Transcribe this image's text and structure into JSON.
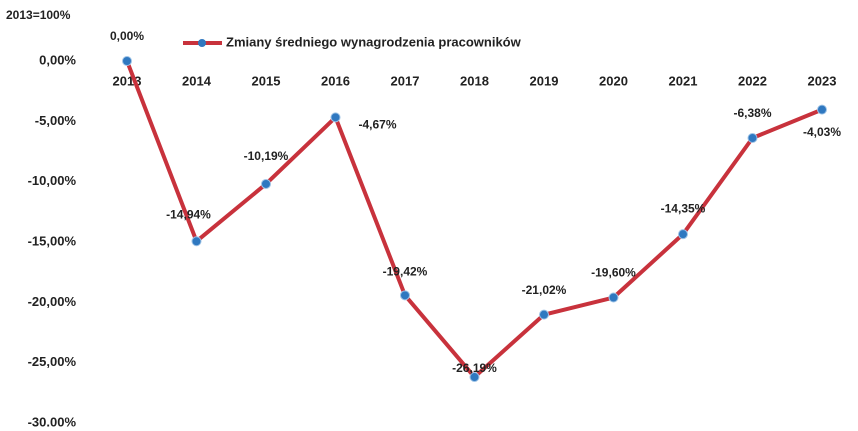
{
  "chart_data": {
    "type": "line",
    "y_axis_label": "2013=100%",
    "categories": [
      "2013",
      "2014",
      "2015",
      "2016",
      "2017",
      "2018",
      "2019",
      "2020",
      "2021",
      "2022",
      "2023"
    ],
    "series": [
      {
        "name": "Zmiany średniego wynagrodzenia pracowników",
        "color": "#c8323c",
        "marker_color": "#2f78c0",
        "values": [
          0,
          -14.94,
          -10.19,
          -4.67,
          -19.42,
          -26.19,
          -21.02,
          -19.6,
          -14.35,
          -6.38,
          -4.03
        ],
        "value_labels": [
          "0,00%",
          "-14,94%",
          "-10,19%",
          "-4,67%",
          "-19,42%",
          "-26,19%",
          "-21,02%",
          "-19,60%",
          "-14,35%",
          "-6,38%",
          "-4,03%"
        ]
      }
    ],
    "ylim": [
      -30,
      0
    ],
    "yticks": [
      {
        "value": 0,
        "label": "0,00%"
      },
      {
        "value": -5,
        "label": "-5,00%"
      },
      {
        "value": -10,
        "label": "-10,00%"
      },
      {
        "value": -15,
        "label": "-15,00%"
      },
      {
        "value": -20,
        "label": "-20,00%"
      },
      {
        "value": -25,
        "label": "-25,00%"
      },
      {
        "value": -30,
        "label": "-30.00%"
      }
    ],
    "grid": false,
    "legend": "top"
  }
}
